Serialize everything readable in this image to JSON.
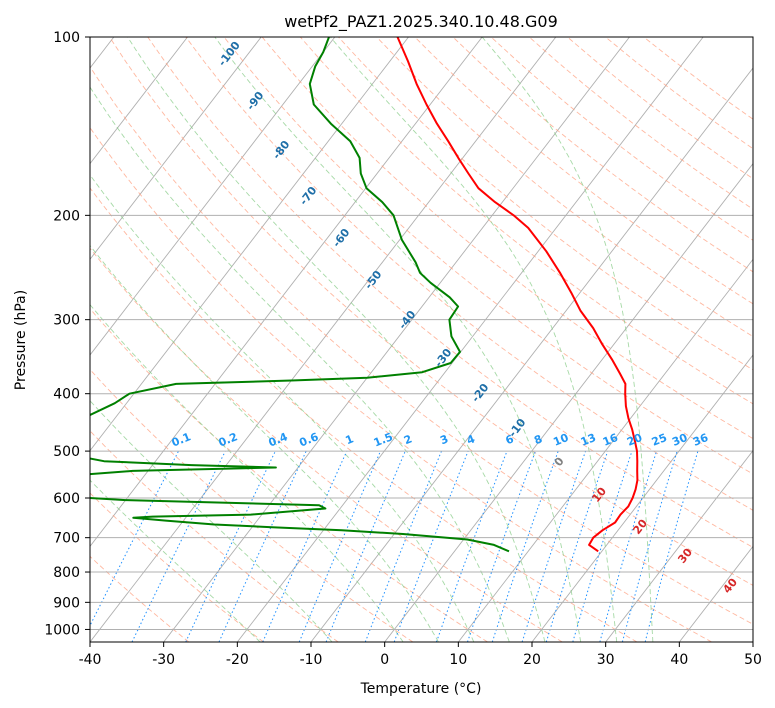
{
  "chart_data": {
    "type": "line",
    "subtype": "skew-T log-P diagram",
    "title": "wetPf2_PAZ1.2025.340.10.48.G09",
    "xlabel": "Temperature (°C)",
    "ylabel": "Pressure (hPa)",
    "xlim": [
      -40,
      50
    ],
    "ylim": [
      1050,
      100
    ],
    "y_scale": "log",
    "x_ticks": [
      -40,
      -30,
      -20,
      -10,
      0,
      10,
      20,
      30,
      40,
      50
    ],
    "y_ticks": [
      100,
      200,
      300,
      400,
      500,
      600,
      700,
      800,
      900,
      1000
    ],
    "grid": true,
    "series": [
      {
        "role": "temperature",
        "color": "#ff0000",
        "points": [
          [
            738,
            19.5
          ],
          [
            720,
            17.6
          ],
          [
            700,
            17.4
          ],
          [
            680,
            17.9
          ],
          [
            660,
            18.8
          ],
          [
            640,
            18.7
          ],
          [
            620,
            18.9
          ],
          [
            600,
            18.6
          ],
          [
            580,
            18.1
          ],
          [
            560,
            17.4
          ],
          [
            540,
            16.4
          ],
          [
            520,
            15.4
          ],
          [
            500,
            14.3
          ],
          [
            480,
            12.9
          ],
          [
            460,
            11.4
          ],
          [
            440,
            9.7
          ],
          [
            420,
            8.1
          ],
          [
            400,
            6.7
          ],
          [
            385,
            5.7
          ],
          [
            370,
            3.9
          ],
          [
            350,
            1.3
          ],
          [
            330,
            -1.6
          ],
          [
            310,
            -4.5
          ],
          [
            290,
            -8.0
          ],
          [
            270,
            -11.2
          ],
          [
            250,
            -14.8
          ],
          [
            230,
            -18.9
          ],
          [
            210,
            -23.8
          ],
          [
            200,
            -27.1
          ],
          [
            190,
            -31.0
          ],
          [
            180,
            -34.7
          ],
          [
            170,
            -37.6
          ],
          [
            160,
            -40.6
          ],
          [
            150,
            -43.7
          ],
          [
            140,
            -47.1
          ],
          [
            130,
            -50.5
          ],
          [
            120,
            -54.0
          ],
          [
            110,
            -57.5
          ],
          [
            100,
            -61.5
          ]
        ]
      },
      {
        "role": "dewpoint",
        "color": "#008000",
        "points": [
          [
            738,
            7.4
          ],
          [
            720,
            4.7
          ],
          [
            705,
            0.5
          ],
          [
            690,
            -8.8
          ],
          [
            680,
            -17.5
          ],
          [
            672,
            -27.3
          ],
          [
            665,
            -35.4
          ],
          [
            655,
            -42.4
          ],
          [
            648,
            -47.1
          ],
          [
            645,
            -44.6
          ],
          [
            640,
            -31.5
          ],
          [
            625,
            -22.0
          ],
          [
            617,
            -23.2
          ],
          [
            605,
            -50.0
          ],
          [
            595,
            -60.0
          ],
          [
            550,
            -60.0
          ],
          [
            540,
            -52.1
          ],
          [
            533,
            -33.0
          ],
          [
            528,
            -44.7
          ],
          [
            520,
            -57.0
          ],
          [
            505,
            -63.0
          ],
          [
            480,
            -70.0
          ],
          [
            455,
            -68.8
          ],
          [
            435,
            -63.8
          ],
          [
            415,
            -61.6
          ],
          [
            400,
            -60.6
          ],
          [
            385,
            -55.3
          ],
          [
            380,
            -40.0
          ],
          [
            376,
            -30.0
          ],
          [
            368,
            -23.1
          ],
          [
            355,
            -20.2
          ],
          [
            340,
            -20.1
          ],
          [
            320,
            -22.9
          ],
          [
            300,
            -24.9
          ],
          [
            285,
            -25.1
          ],
          [
            275,
            -27.2
          ],
          [
            260,
            -31.3
          ],
          [
            250,
            -33.8
          ],
          [
            240,
            -35.5
          ],
          [
            220,
            -39.7
          ],
          [
            200,
            -43.4
          ],
          [
            190,
            -46.3
          ],
          [
            180,
            -49.9
          ],
          [
            170,
            -52.2
          ],
          [
            160,
            -54.0
          ],
          [
            150,
            -57.0
          ],
          [
            140,
            -61.5
          ],
          [
            130,
            -65.8
          ],
          [
            120,
            -68.5
          ],
          [
            112,
            -69.6
          ],
          [
            106,
            -70.0
          ],
          [
            100,
            -70.8
          ]
        ]
      }
    ],
    "dry_adiabats_c": [
      -30,
      -20,
      -10,
      0,
      10,
      20,
      30,
      40,
      50,
      60,
      70,
      80,
      90,
      100,
      110,
      120,
      130,
      140,
      150,
      160,
      170,
      180,
      190,
      200
    ],
    "moist_adiabats_c": [
      -20,
      -10,
      0,
      5,
      10,
      15,
      20,
      25,
      30,
      35
    ],
    "mixing_ratio_labels": [
      "0.1",
      "0.2",
      "0.4",
      "0.6",
      "1",
      "1.5",
      "2",
      "3",
      "4",
      "6",
      "8",
      "10",
      "13",
      "16",
      "20",
      "25",
      "30",
      "36"
    ],
    "mixing_ratios_gkg": [
      0.1,
      0.2,
      0.4,
      0.6,
      1,
      1.5,
      2,
      3,
      4,
      6,
      8,
      10,
      13,
      16,
      20,
      25,
      30,
      36
    ],
    "isotherm_labels_cold": [
      -100,
      -90,
      -80,
      -70,
      -60,
      -50,
      -40,
      -30,
      -20,
      -10
    ],
    "isotherm_labels_warm": [
      0,
      10,
      20,
      30,
      40
    ],
    "colors": {
      "skewed_isotherm": "#b0b0b0",
      "dry_adiabat": "#ffa080",
      "moist_adiabat": "#88cc88",
      "mixing_ratio": "#1e90ff",
      "cold_label": "#1f6fa8",
      "zero_label": "#808080",
      "warm_label": "#d62728",
      "mixing_label": "#2196f3"
    }
  }
}
